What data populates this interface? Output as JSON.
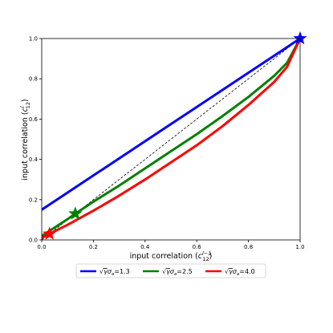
{
  "chart_data": {
    "type": "line",
    "title": "",
    "xlabel_main": "input correlation (",
    "xlabel_var": "c",
    "xlabel_sup": "l−1",
    "xlabel_sub": "12",
    "xlabel_close": ")",
    "ylabel_main": "input correlation (",
    "ylabel_var": "c",
    "ylabel_sup": "l",
    "ylabel_sub": "12",
    "ylabel_close": ")",
    "xlim": [
      0.0,
      1.0
    ],
    "ylim": [
      0.0,
      1.0
    ],
    "x_ticks": [
      {
        "value": 0.0,
        "label": "0.0"
      },
      {
        "value": 0.2,
        "label": "0.2"
      },
      {
        "value": 0.4,
        "label": "0.4"
      },
      {
        "value": 0.6,
        "label": "0.6"
      },
      {
        "value": 0.8,
        "label": "0.8"
      },
      {
        "value": 1.0,
        "label": "1.0"
      }
    ],
    "y_ticks": [
      {
        "value": 0.0,
        "label": "0.0"
      },
      {
        "value": 0.2,
        "label": "0.2"
      },
      {
        "value": 0.4,
        "label": "0.4"
      },
      {
        "value": 0.6,
        "label": "0.6"
      },
      {
        "value": 0.8,
        "label": "0.8"
      },
      {
        "value": 1.0,
        "label": "1.0"
      }
    ],
    "grid": false,
    "legend_position": "bottom-center, below axes",
    "identity_line": {
      "x": [
        0.0,
        1.0
      ],
      "y": [
        0.0,
        1.0
      ],
      "color": "#000000",
      "style": "dashed"
    },
    "series": [
      {
        "name": "√γσ_a=1.3",
        "legend_sqrt": "√",
        "legend_gamma": "γ",
        "legend_sigma": "σ",
        "legend_sub": "a",
        "legend_value": "=1.3",
        "color": "#0000ff",
        "x": [
          0.0,
          0.1,
          0.2,
          0.3,
          0.4,
          0.5,
          0.6,
          0.7,
          0.8,
          0.9,
          1.0
        ],
        "y": [
          0.15,
          0.235,
          0.32,
          0.405,
          0.49,
          0.575,
          0.66,
          0.745,
          0.83,
          0.915,
          1.0
        ],
        "fixed_point": {
          "x": 1.0,
          "y": 1.0
        }
      },
      {
        "name": "√γσ_a=2.5",
        "legend_sqrt": "√",
        "legend_gamma": "γ",
        "legend_sigma": "σ",
        "legend_sub": "a",
        "legend_value": "=2.5",
        "color": "#008000",
        "x": [
          0.0,
          0.1,
          0.13,
          0.2,
          0.3,
          0.4,
          0.5,
          0.6,
          0.7,
          0.8,
          0.9,
          0.95,
          1.0
        ],
        "y": [
          0.02,
          0.103,
          0.13,
          0.19,
          0.27,
          0.355,
          0.44,
          0.525,
          0.615,
          0.71,
          0.815,
          0.88,
          1.0
        ],
        "fixed_point": {
          "x": 0.13,
          "y": 0.13
        }
      },
      {
        "name": "√γσ_a=4.0",
        "legend_sqrt": "√",
        "legend_gamma": "γ",
        "legend_sigma": "σ",
        "legend_sub": "a",
        "legend_value": "=4.0",
        "color": "#ff0000",
        "x": [
          0.0,
          0.03,
          0.1,
          0.2,
          0.3,
          0.4,
          0.5,
          0.6,
          0.7,
          0.8,
          0.9,
          0.95,
          1.0
        ],
        "y": [
          0.01,
          0.03,
          0.075,
          0.145,
          0.22,
          0.3,
          0.385,
          0.47,
          0.565,
          0.67,
          0.785,
          0.86,
          1.0
        ],
        "fixed_point": {
          "x": 0.03,
          "y": 0.03
        }
      }
    ]
  }
}
